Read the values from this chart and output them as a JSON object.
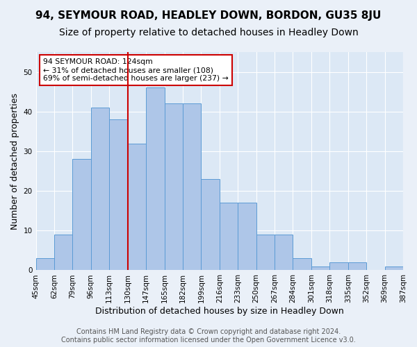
{
  "title": "94, SEYMOUR ROAD, HEADLEY DOWN, BORDON, GU35 8JU",
  "subtitle": "Size of property relative to detached houses in Headley Down",
  "xlabel": "Distribution of detached houses by size in Headley Down",
  "ylabel": "Number of detached properties",
  "bar_values": [
    3,
    9,
    28,
    41,
    38,
    32,
    46,
    42,
    42,
    23,
    17,
    17,
    9,
    9,
    3,
    1,
    2,
    2,
    0,
    1
  ],
  "categories": [
    "45sqm",
    "62sqm",
    "79sqm",
    "96sqm",
    "113sqm",
    "130sqm",
    "147sqm",
    "165sqm",
    "182sqm",
    "199sqm",
    "216sqm",
    "233sqm",
    "250sqm",
    "267sqm",
    "284sqm",
    "301sqm",
    "318sqm",
    "335sqm",
    "352sqm",
    "369sqm",
    "387sqm"
  ],
  "bar_color": "#aec6e8",
  "bar_edge_color": "#5b9bd5",
  "bg_color": "#eaf0f8",
  "plot_bg_color": "#dce8f5",
  "grid_color": "#ffffff",
  "vline_pos": 5,
  "vline_color": "#cc0000",
  "annotation_text": "94 SEYMOUR ROAD: 124sqm\n← 31% of detached houses are smaller (108)\n69% of semi-detached houses are larger (237) →",
  "annotation_box_color": "#ffffff",
  "annotation_box_edge": "#cc0000",
  "footer_text": "Contains HM Land Registry data © Crown copyright and database right 2024.\nContains public sector information licensed under the Open Government Licence v3.0.",
  "ylim": [
    0,
    55
  ],
  "title_fontsize": 11,
  "subtitle_fontsize": 10,
  "xlabel_fontsize": 9,
  "ylabel_fontsize": 9,
  "tick_fontsize": 7.5,
  "footer_fontsize": 7
}
